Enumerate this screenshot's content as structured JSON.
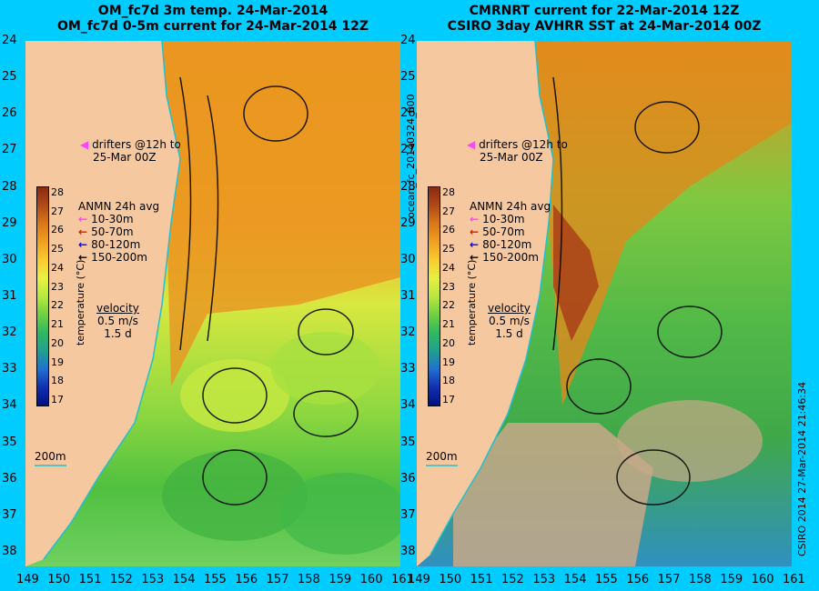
{
  "left_panel": {
    "title_line1": "OM_fc7d 3m temp. 24-Mar-2014",
    "title_line2": "OM_fc7d 0-5m current for 24-Mar-2014 12Z"
  },
  "right_panel": {
    "title_line1": "CMRNRT current for 22-Mar-2014 12Z",
    "title_line2": "CSIRO 3day AVHRR SST at 24-Mar-2014 00Z",
    "side_label": "ocean_fc_20140324_000"
  },
  "footer_right": "CSIRO 2014  27-Mar-2014 21:46:34",
  "y_ticks": [
    "24",
    "25",
    "26",
    "27",
    "28",
    "29",
    "30",
    "31",
    "32",
    "33",
    "34",
    "35",
    "36",
    "37",
    "38"
  ],
  "x_ticks": [
    "149",
    "150",
    "151",
    "152",
    "153",
    "154",
    "155",
    "156",
    "157",
    "158",
    "159",
    "160",
    "161"
  ],
  "drifters_label": [
    "drifters @12h to",
    "25-Mar 00Z"
  ],
  "anmn": {
    "title": "ANMN 24h avg",
    "items": [
      {
        "label": "10-30m",
        "color": "#ff44ff"
      },
      {
        "label": "50-70m",
        "color": "#cc2200"
      },
      {
        "label": "80-120m",
        "color": "#0000ff"
      },
      {
        "label": "150-200m",
        "color": "#000000"
      }
    ]
  },
  "velocity": {
    "title": "velocity",
    "speed": "0.5 m/s",
    "time": "1.5 d"
  },
  "colorbar": {
    "label": "temperature (°C)",
    "ticks": [
      "28",
      "27",
      "26",
      "25",
      "24",
      "23",
      "22",
      "21",
      "20",
      "19",
      "18",
      "17"
    ],
    "colors": [
      "#8b2a10",
      "#b04a18",
      "#d87818",
      "#f0a020",
      "#f8cc30",
      "#e8f040",
      "#b8e840",
      "#70d040",
      "#30b860",
      "#20a090",
      "#2070d0",
      "#1030b0",
      "#001080"
    ]
  },
  "isobath": "200m",
  "colors": {
    "land": "#f5c8a0",
    "coast": "#20c0d0",
    "background": "#00ccff"
  }
}
